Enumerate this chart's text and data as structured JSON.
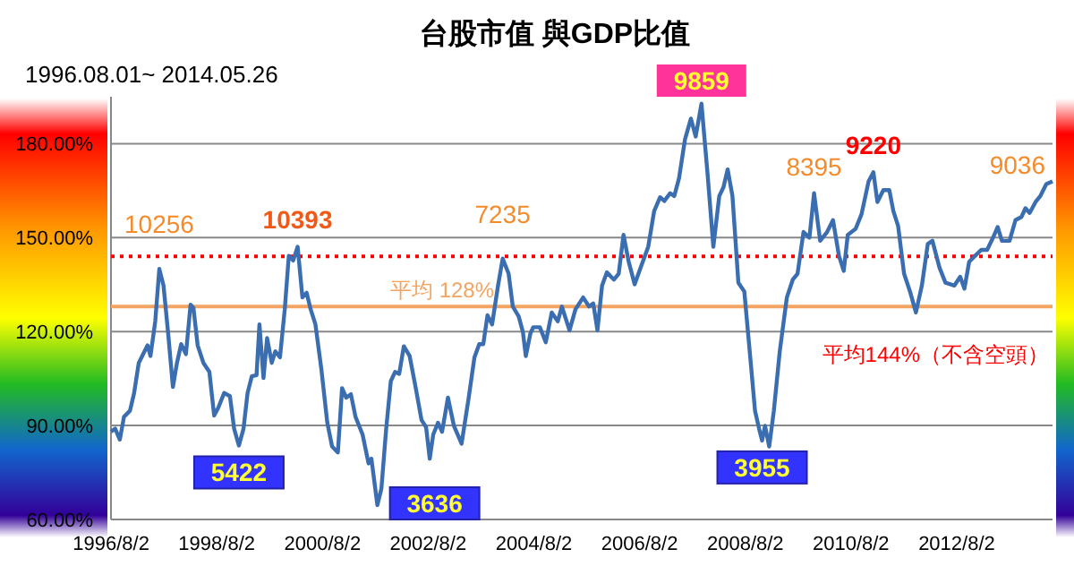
{
  "chart_data": {
    "type": "line",
    "title": "台股市值 與GDP比值",
    "subtitle": "1996.08.01~ 2014.05.26",
    "x": [
      "1996-08-01",
      "1996-08-30",
      "1996-10-01",
      "1996-10-30",
      "1996-12-10",
      "1997-01-08",
      "1997-02-09",
      "1997-03-21",
      "1997-04-11",
      "1997-05-01",
      "1997-06-03",
      "1997-07-01",
      "1997-07-30",
      "1997-08-31",
      "1997-10-03",
      "1997-10-31",
      "1997-11-29",
      "1998-01-01",
      "1998-02-02",
      "1998-02-22",
      "1998-03-23",
      "1998-05-02",
      "1998-06-12",
      "1998-07-15",
      "1998-08-12",
      "1998-09-22",
      "1998-11-01",
      "1998-11-30",
      "1999-01-02",
      "1999-02-03",
      "1999-03-03",
      "1999-04-01",
      "1999-05-04",
      "1999-05-24",
      "1999-06-21",
      "1999-07-16",
      "1999-08-17",
      "1999-09-11",
      "1999-10-13",
      "1999-11-15",
      "1999-12-13",
      "2000-01-12",
      "2000-02-12",
      "2000-03-16",
      "2000-04-14",
      "2000-05-12",
      "2000-06-14",
      "2000-07-25",
      "2000-09-04",
      "2000-10-07",
      "2000-11-16",
      "2000-12-15",
      "2001-01-13",
      "2001-02-14",
      "2001-03-18",
      "2001-05-06",
      "2001-06-16",
      "2001-07-06",
      "2001-08-16",
      "2001-09-13",
      "2001-10-16",
      "2001-11-17",
      "2001-12-16",
      "2002-01-14",
      "2002-02-15",
      "2002-03-27",
      "2002-05-07",
      "2002-06-17",
      "2002-07-19",
      "2002-08-13",
      "2002-09-06",
      "2002-10-09",
      "2002-11-06",
      "2002-12-17",
      "2003-01-27",
      "2003-03-21",
      "2003-05-08",
      "2003-06-18",
      "2003-07-21",
      "2003-08-18",
      "2003-09-16",
      "2003-10-18",
      "2003-11-28",
      "2003-12-30",
      "2004-02-09",
      "2004-03-09",
      "2004-04-19",
      "2004-05-18",
      "2004-06-07",
      "2004-07-09",
      "2004-07-29",
      "2004-09-12",
      "2004-10-23",
      "2004-12-03",
      "2005-01-14",
      "2005-02-11",
      "2005-04-05",
      "2005-05-16",
      "2005-07-08",
      "2005-08-18",
      "2005-09-16",
      "2005-10-15",
      "2005-11-16",
      "2005-12-19",
      "2006-02-06",
      "2006-03-11",
      "2006-04-13",
      "2006-05-19",
      "2006-06-29",
      "2006-08-09",
      "2006-10-01",
      "2006-11-11",
      "2006-12-22",
      "2007-01-20",
      "2007-03-02",
      "2007-03-30",
      "2007-05-02",
      "2007-06-12",
      "2007-07-23",
      "2007-08-25",
      "2007-10-04",
      "2007-11-14",
      "2007-12-25",
      "2008-02-04",
      "2008-03-04",
      "2008-04-02",
      "2008-05-05",
      "2008-06-15",
      "2008-07-26",
      "2008-09-05",
      "2008-10-08",
      "2008-11-05",
      "2008-11-26",
      "2008-12-16",
      "2009-01-14",
      "2009-02-15",
      "2009-03-28",
      "2009-05-16",
      "2009-06-26",
      "2009-07-29",
      "2009-09-08",
      "2009-10-19",
      "2009-11-20",
      "2010-01-01",
      "2010-02-18",
      "2010-03-31",
      "2010-05-11",
      "2010-06-13",
      "2010-07-11",
      "2010-09-03",
      "2010-10-14",
      "2010-12-02",
      "2011-01-04",
      "2011-02-01",
      "2011-03-14",
      "2011-04-24",
      "2011-05-22",
      "2011-06-24",
      "2011-08-04",
      "2011-09-14",
      "2011-10-25",
      "2011-12-05",
      "2012-01-15",
      "2012-02-16",
      "2012-04-05",
      "2012-05-16",
      "2012-07-17",
      "2012-08-26",
      "2012-09-24",
      "2012-10-27",
      "2012-12-07",
      "2013-01-18",
      "2013-02-28",
      "2013-04-10",
      "2013-05-12",
      "2013-06-10",
      "2013-08-02",
      "2013-09-12",
      "2013-10-23",
      "2013-11-20",
      "2013-12-19",
      "2014-01-29",
      "2014-03-03",
      "2014-04-13",
      "2014-05-26"
    ],
    "series": [
      {
        "color": "#3a6eb0",
        "values": [
          88.0,
          89.0,
          85.5,
          92.8,
          94.7,
          100.4,
          110.0,
          113.7,
          115.6,
          112.2,
          123.3,
          140.0,
          134.7,
          119.5,
          102.3,
          110.0,
          116.0,
          112.8,
          128.6,
          127.5,
          115.6,
          110.0,
          107.1,
          93.2,
          95.6,
          100.4,
          99.4,
          89.0,
          83.6,
          89.0,
          100.4,
          105.7,
          106.1,
          122.3,
          105.2,
          117.9,
          110.0,
          113.7,
          111.8,
          127.1,
          144.2,
          142.7,
          147.1,
          130.9,
          132.4,
          127.1,
          122.3,
          108.0,
          90.9,
          83.3,
          81.4,
          101.9,
          98.9,
          100.0,
          92.8,
          87.1,
          77.9,
          79.4,
          64.6,
          69.9,
          89.0,
          104.2,
          107.1,
          106.5,
          115.3,
          112.2,
          102.3,
          91.8,
          89.4,
          79.4,
          87.1,
          90.9,
          88.0,
          98.9,
          89.9,
          84.2,
          98.5,
          111.8,
          116.0,
          116.0,
          125.2,
          122.3,
          134.7,
          143.3,
          138.5,
          128.0,
          124.8,
          119.8,
          112.2,
          119.5,
          121.4,
          121.4,
          116.6,
          126.1,
          123.3,
          128.0,
          120.4,
          127.1,
          130.9,
          128.0,
          129.0,
          120.4,
          134.7,
          138.9,
          136.6,
          138.5,
          150.9,
          142.3,
          135.1,
          140.4,
          147.1,
          158.5,
          162.9,
          161.7,
          164.2,
          163.3,
          169.0,
          181.4,
          188.0,
          182.3,
          192.8,
          170.9,
          147.1,
          163.3,
          166.1,
          171.8,
          163.3,
          135.6,
          132.8,
          111.8,
          94.7,
          89.0,
          85.2,
          89.9,
          83.3,
          94.7,
          113.7,
          130.9,
          136.6,
          138.5,
          151.8,
          150.0,
          164.2,
          149.0,
          151.8,
          155.6,
          144.2,
          139.4,
          150.9,
          152.8,
          157.5,
          168.0,
          170.9,
          161.4,
          165.2,
          165.2,
          158.5,
          153.7,
          138.5,
          132.8,
          126.1,
          134.7,
          148.0,
          149.0,
          140.4,
          135.6,
          134.7,
          137.5,
          133.7,
          142.3,
          144.2,
          146.1,
          146.1,
          150.0,
          153.4,
          149.0,
          149.0,
          155.6,
          156.6,
          159.4,
          157.9,
          161.4,
          163.3,
          167.1,
          168.0
        ]
      }
    ],
    "xlim": [
      "1996-08-01",
      "2014-05-26"
    ],
    "xticks": [
      {
        "value": "1996-08-02",
        "label": "1996/8/2"
      },
      {
        "value": "1998-08-02",
        "label": "1998/8/2"
      },
      {
        "value": "2000-08-02",
        "label": "2000/8/2"
      },
      {
        "value": "2002-08-02",
        "label": "2002/8/2"
      },
      {
        "value": "2004-08-02",
        "label": "2004/8/2"
      },
      {
        "value": "2006-08-02",
        "label": "2006/8/2"
      },
      {
        "value": "2008-08-02",
        "label": "2008/8/2"
      },
      {
        "value": "2010-08-02",
        "label": "2010/8/2"
      },
      {
        "value": "2012-08-02",
        "label": "2012/8/2"
      }
    ],
    "ylim": [
      60,
      195
    ],
    "yticks": [
      {
        "value": 60,
        "label": "60.00%"
      },
      {
        "value": 90,
        "label": "90.00%"
      },
      {
        "value": 120,
        "label": "120.00%"
      },
      {
        "value": 150,
        "label": "150.00%"
      },
      {
        "value": 180,
        "label": "180.00%"
      }
    ],
    "grid": "y",
    "marker": "none",
    "line_style": "solid",
    "ref_lines": [
      {
        "axis": "y",
        "value": 128,
        "label": "平均 128%",
        "color": "#f4a460",
        "line_style": "solid"
      },
      {
        "axis": "y",
        "value": 144,
        "label": "平均144%（不含空頭）",
        "color": "#ff0000",
        "line_style": "dotted"
      }
    ],
    "annotations": [
      {
        "text": "10256",
        "x": "1997-07-01",
        "y": 140.0
      },
      {
        "text": "5422",
        "x": "1999-01-02",
        "y": 83.6
      },
      {
        "text": "10393",
        "x": "2000-02-12",
        "y": 147.1
      },
      {
        "text": "3636",
        "x": "2001-08-16",
        "y": 64.6
      },
      {
        "text": "7235",
        "x": "2003-12-30",
        "y": 143.3
      },
      {
        "text": "9859",
        "x": "2007-10-04",
        "y": 192.8
      },
      {
        "text": "3955",
        "x": "2008-11-26",
        "y": 85.2
      },
      {
        "text": "8395",
        "x": "2009-11-20",
        "y": 164.2
      },
      {
        "text": "9220",
        "x": "2011-01-04",
        "y": 170.9
      },
      {
        "text": "9036",
        "x": "2014-05-26",
        "y": 168.0
      }
    ]
  }
}
